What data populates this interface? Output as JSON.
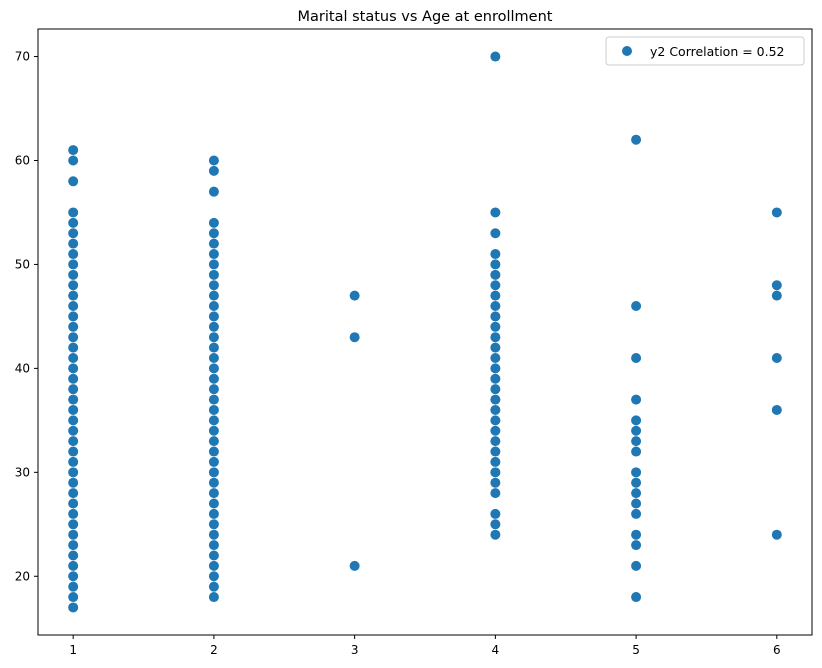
{
  "chart_data": {
    "type": "scatter",
    "title": "Marital status vs Age at enrollment",
    "xlabel": "",
    "ylabel": "",
    "xlim": [
      0.75,
      6.25
    ],
    "ylim": [
      14.35,
      72.65
    ],
    "x_ticks": [
      1,
      2,
      3,
      4,
      5,
      6
    ],
    "y_ticks": [
      20,
      30,
      40,
      50,
      60,
      70
    ],
    "grid": false,
    "legend_position": "top-right",
    "marker_color": "#1f77b4",
    "series": [
      {
        "name": "y2 Correlation = 0.52",
        "points": [
          [
            1,
            17
          ],
          [
            1,
            18
          ],
          [
            1,
            19
          ],
          [
            1,
            20
          ],
          [
            1,
            21
          ],
          [
            1,
            22
          ],
          [
            1,
            23
          ],
          [
            1,
            24
          ],
          [
            1,
            25
          ],
          [
            1,
            26
          ],
          [
            1,
            27
          ],
          [
            1,
            28
          ],
          [
            1,
            29
          ],
          [
            1,
            30
          ],
          [
            1,
            31
          ],
          [
            1,
            32
          ],
          [
            1,
            33
          ],
          [
            1,
            34
          ],
          [
            1,
            35
          ],
          [
            1,
            36
          ],
          [
            1,
            37
          ],
          [
            1,
            38
          ],
          [
            1,
            39
          ],
          [
            1,
            40
          ],
          [
            1,
            41
          ],
          [
            1,
            42
          ],
          [
            1,
            43
          ],
          [
            1,
            44
          ],
          [
            1,
            45
          ],
          [
            1,
            46
          ],
          [
            1,
            47
          ],
          [
            1,
            48
          ],
          [
            1,
            49
          ],
          [
            1,
            50
          ],
          [
            1,
            51
          ],
          [
            1,
            52
          ],
          [
            1,
            53
          ],
          [
            1,
            54
          ],
          [
            1,
            55
          ],
          [
            1,
            58
          ],
          [
            1,
            60
          ],
          [
            1,
            61
          ],
          [
            2,
            18
          ],
          [
            2,
            19
          ],
          [
            2,
            20
          ],
          [
            2,
            21
          ],
          [
            2,
            22
          ],
          [
            2,
            23
          ],
          [
            2,
            24
          ],
          [
            2,
            25
          ],
          [
            2,
            26
          ],
          [
            2,
            27
          ],
          [
            2,
            28
          ],
          [
            2,
            29
          ],
          [
            2,
            30
          ],
          [
            2,
            31
          ],
          [
            2,
            32
          ],
          [
            2,
            33
          ],
          [
            2,
            34
          ],
          [
            2,
            35
          ],
          [
            2,
            36
          ],
          [
            2,
            37
          ],
          [
            2,
            38
          ],
          [
            2,
            39
          ],
          [
            2,
            40
          ],
          [
            2,
            41
          ],
          [
            2,
            42
          ],
          [
            2,
            43
          ],
          [
            2,
            44
          ],
          [
            2,
            45
          ],
          [
            2,
            46
          ],
          [
            2,
            47
          ],
          [
            2,
            48
          ],
          [
            2,
            49
          ],
          [
            2,
            50
          ],
          [
            2,
            51
          ],
          [
            2,
            52
          ],
          [
            2,
            53
          ],
          [
            2,
            54
          ],
          [
            2,
            57
          ],
          [
            2,
            59
          ],
          [
            2,
            60
          ],
          [
            3,
            21
          ],
          [
            3,
            43
          ],
          [
            3,
            47
          ],
          [
            4,
            24
          ],
          [
            4,
            25
          ],
          [
            4,
            26
          ],
          [
            4,
            28
          ],
          [
            4,
            29
          ],
          [
            4,
            30
          ],
          [
            4,
            31
          ],
          [
            4,
            32
          ],
          [
            4,
            33
          ],
          [
            4,
            34
          ],
          [
            4,
            35
          ],
          [
            4,
            36
          ],
          [
            4,
            37
          ],
          [
            4,
            38
          ],
          [
            4,
            39
          ],
          [
            4,
            40
          ],
          [
            4,
            41
          ],
          [
            4,
            42
          ],
          [
            4,
            43
          ],
          [
            4,
            44
          ],
          [
            4,
            45
          ],
          [
            4,
            46
          ],
          [
            4,
            47
          ],
          [
            4,
            48
          ],
          [
            4,
            49
          ],
          [
            4,
            50
          ],
          [
            4,
            51
          ],
          [
            4,
            53
          ],
          [
            4,
            55
          ],
          [
            4,
            70
          ],
          [
            5,
            18
          ],
          [
            5,
            21
          ],
          [
            5,
            23
          ],
          [
            5,
            24
          ],
          [
            5,
            26
          ],
          [
            5,
            27
          ],
          [
            5,
            28
          ],
          [
            5,
            29
          ],
          [
            5,
            30
          ],
          [
            5,
            32
          ],
          [
            5,
            33
          ],
          [
            5,
            34
          ],
          [
            5,
            35
          ],
          [
            5,
            37
          ],
          [
            5,
            41
          ],
          [
            5,
            46
          ],
          [
            5,
            62
          ],
          [
            6,
            24
          ],
          [
            6,
            36
          ],
          [
            6,
            41
          ],
          [
            6,
            47
          ],
          [
            6,
            48
          ],
          [
            6,
            55
          ]
        ]
      }
    ]
  }
}
